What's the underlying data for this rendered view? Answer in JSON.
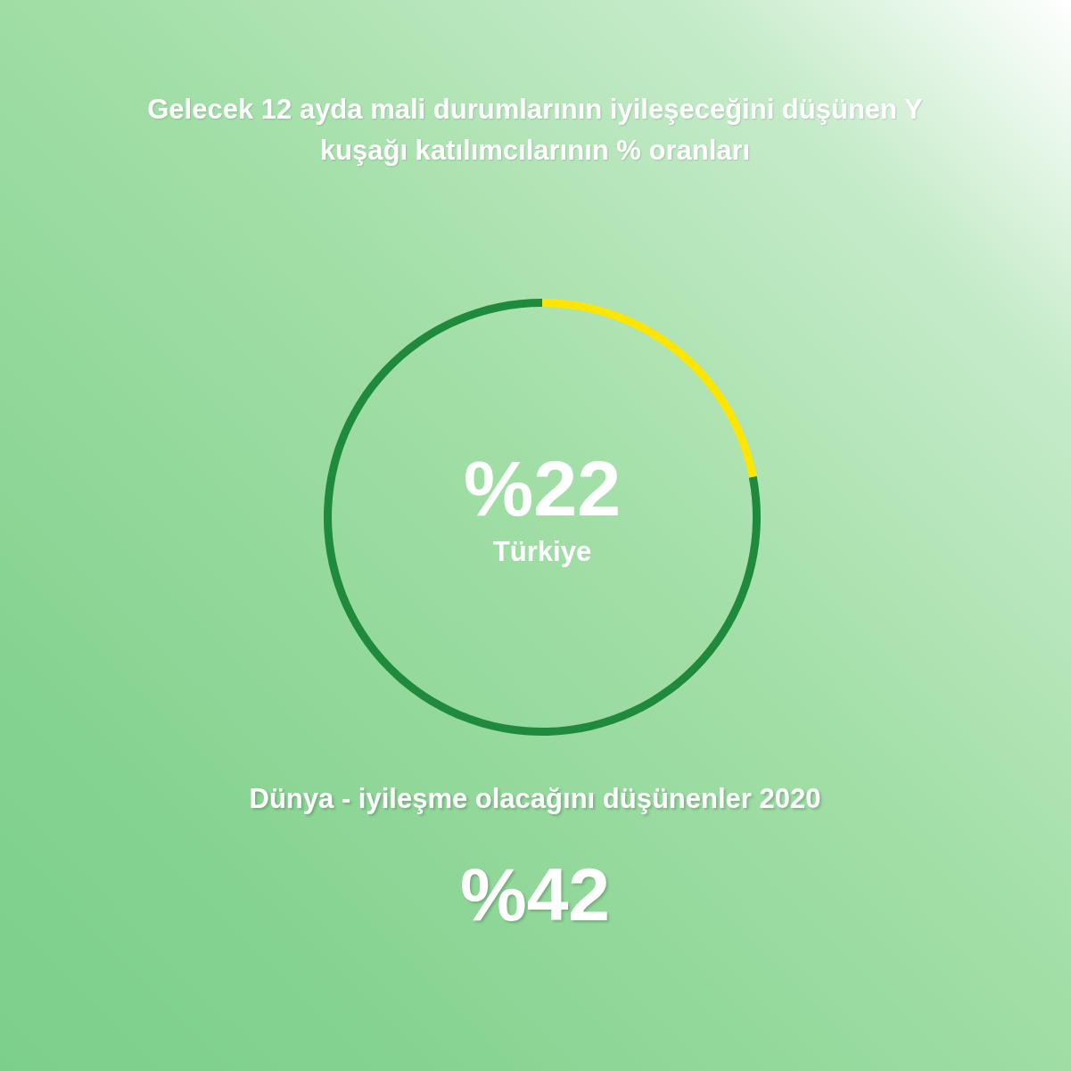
{
  "chart_data": {
    "type": "donut",
    "title": "Gelecek 12 ayda mali durumlarının iyileşeceğini düşünen Y kuşağı katılımcılarının % oranları",
    "categories": [
      "Türkiye",
      null
    ],
    "values": [
      22,
      78
    ],
    "colors": [
      "#ffe600",
      "#1f8a3c"
    ],
    "value_labels": [
      "%22",
      null
    ],
    "annotations": [
      "Dünya - iyileşme olacağını düşünenler 2020",
      "%42"
    ]
  }
}
